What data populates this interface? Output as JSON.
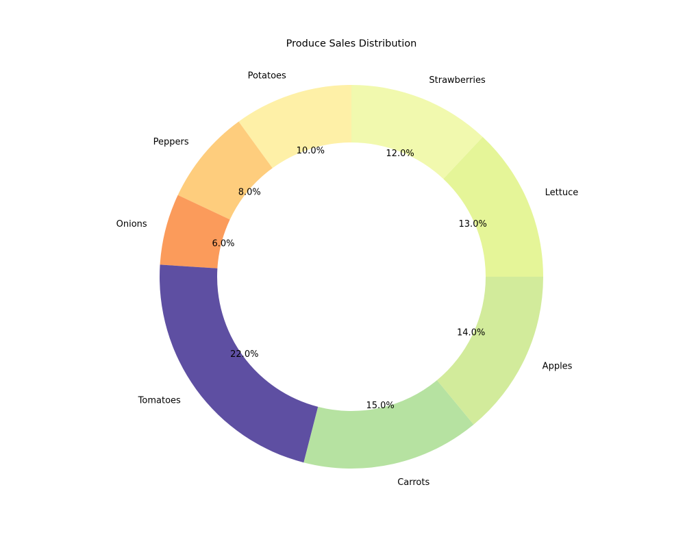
{
  "chart_data": {
    "type": "pie",
    "style": "donut",
    "title": "Produce Sales Distribution",
    "categories": [
      "Potatoes",
      "Peppers",
      "Onions",
      "Tomatoes",
      "Carrots",
      "Apples",
      "Lettuce",
      "Strawberries"
    ],
    "values": [
      10.0,
      8.0,
      6.0,
      22.0,
      15.0,
      14.0,
      13.0,
      12.0
    ],
    "value_labels": [
      "10.0%",
      "8.0%",
      "6.0%",
      "22.0%",
      "15.0%",
      "14.0%",
      "13.0%",
      "12.0%"
    ],
    "colors": [
      "#fef0a7",
      "#fecd7d",
      "#fb9b5b",
      "#5e4fa2",
      "#b6e2a1",
      "#d2eb9b",
      "#e5f598",
      "#f1f9ae"
    ],
    "direction": "counterclockwise",
    "legend": "none"
  }
}
